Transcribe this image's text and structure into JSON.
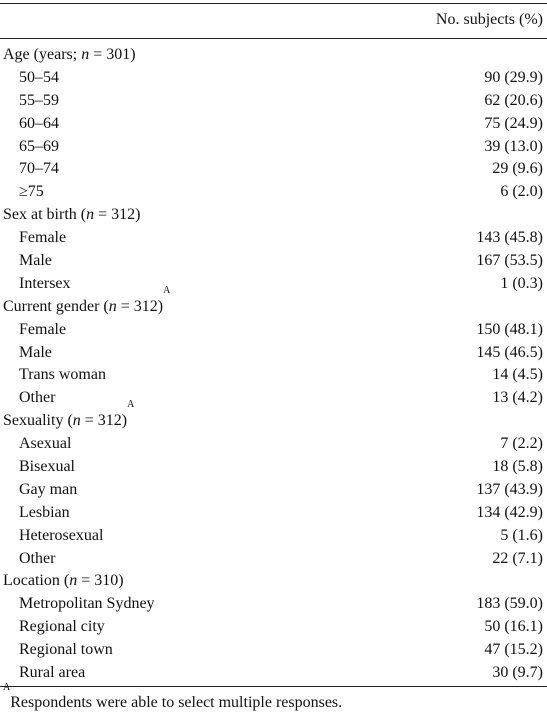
{
  "header": {
    "value_column": "No. subjects (%)"
  },
  "groups": [
    {
      "title": "Age (years; ",
      "n_label": "n",
      "n_value": " = 301)",
      "sup": "",
      "items": [
        {
          "label": "50–54",
          "value": "90 (29.9)"
        },
        {
          "label": "55–59",
          "value": "62 (20.6)"
        },
        {
          "label": "60–64",
          "value": "75 (24.9)"
        },
        {
          "label": "65–69",
          "value": "39 (13.0)"
        },
        {
          "label": "70–74",
          "value": "29 (9.6)"
        },
        {
          "label": "≥75",
          "value": "6 (2.0)"
        }
      ]
    },
    {
      "title": "Sex at birth (",
      "n_label": "n",
      "n_value": " = 312)",
      "sup": "",
      "items": [
        {
          "label": "Female",
          "value": "143 (45.8)"
        },
        {
          "label": "Male",
          "value": "167 (53.5)"
        },
        {
          "label": "Intersex",
          "value": "1 (0.3)"
        }
      ]
    },
    {
      "title": "Current gender (",
      "n_label": "n",
      "n_value": " = 312)",
      "sup": "A",
      "items": [
        {
          "label": "Female",
          "value": "150 (48.1)"
        },
        {
          "label": "Male",
          "value": "145 (46.5)"
        },
        {
          "label": "Trans woman",
          "value": "14 (4.5)"
        },
        {
          "label": "Other",
          "value": "13 (4.2)"
        }
      ]
    },
    {
      "title": "Sexuality (",
      "n_label": "n",
      "n_value": " = 312)",
      "sup": "A",
      "items": [
        {
          "label": "Asexual",
          "value": "7 (2.2)"
        },
        {
          "label": "Bisexual",
          "value": "18 (5.8)"
        },
        {
          "label": "Gay man",
          "value": "137 (43.9)"
        },
        {
          "label": "Lesbian",
          "value": "134 (42.9)"
        },
        {
          "label": "Heterosexual",
          "value": "5 (1.6)"
        },
        {
          "label": "Other",
          "value": "22 (7.1)"
        }
      ]
    },
    {
      "title": "Location (",
      "n_label": "n",
      "n_value": " = 310)",
      "sup": "",
      "items": [
        {
          "label": "Metropolitan Sydney",
          "value": "183 (59.0)"
        },
        {
          "label": "Regional city",
          "value": "50 (16.1)"
        },
        {
          "label": "Regional town",
          "value": "47 (15.2)"
        },
        {
          "label": "Rural area",
          "value": "30 (9.7)"
        }
      ]
    }
  ],
  "footnote": {
    "marker": "A",
    "text": "Respondents were able to select multiple responses."
  }
}
